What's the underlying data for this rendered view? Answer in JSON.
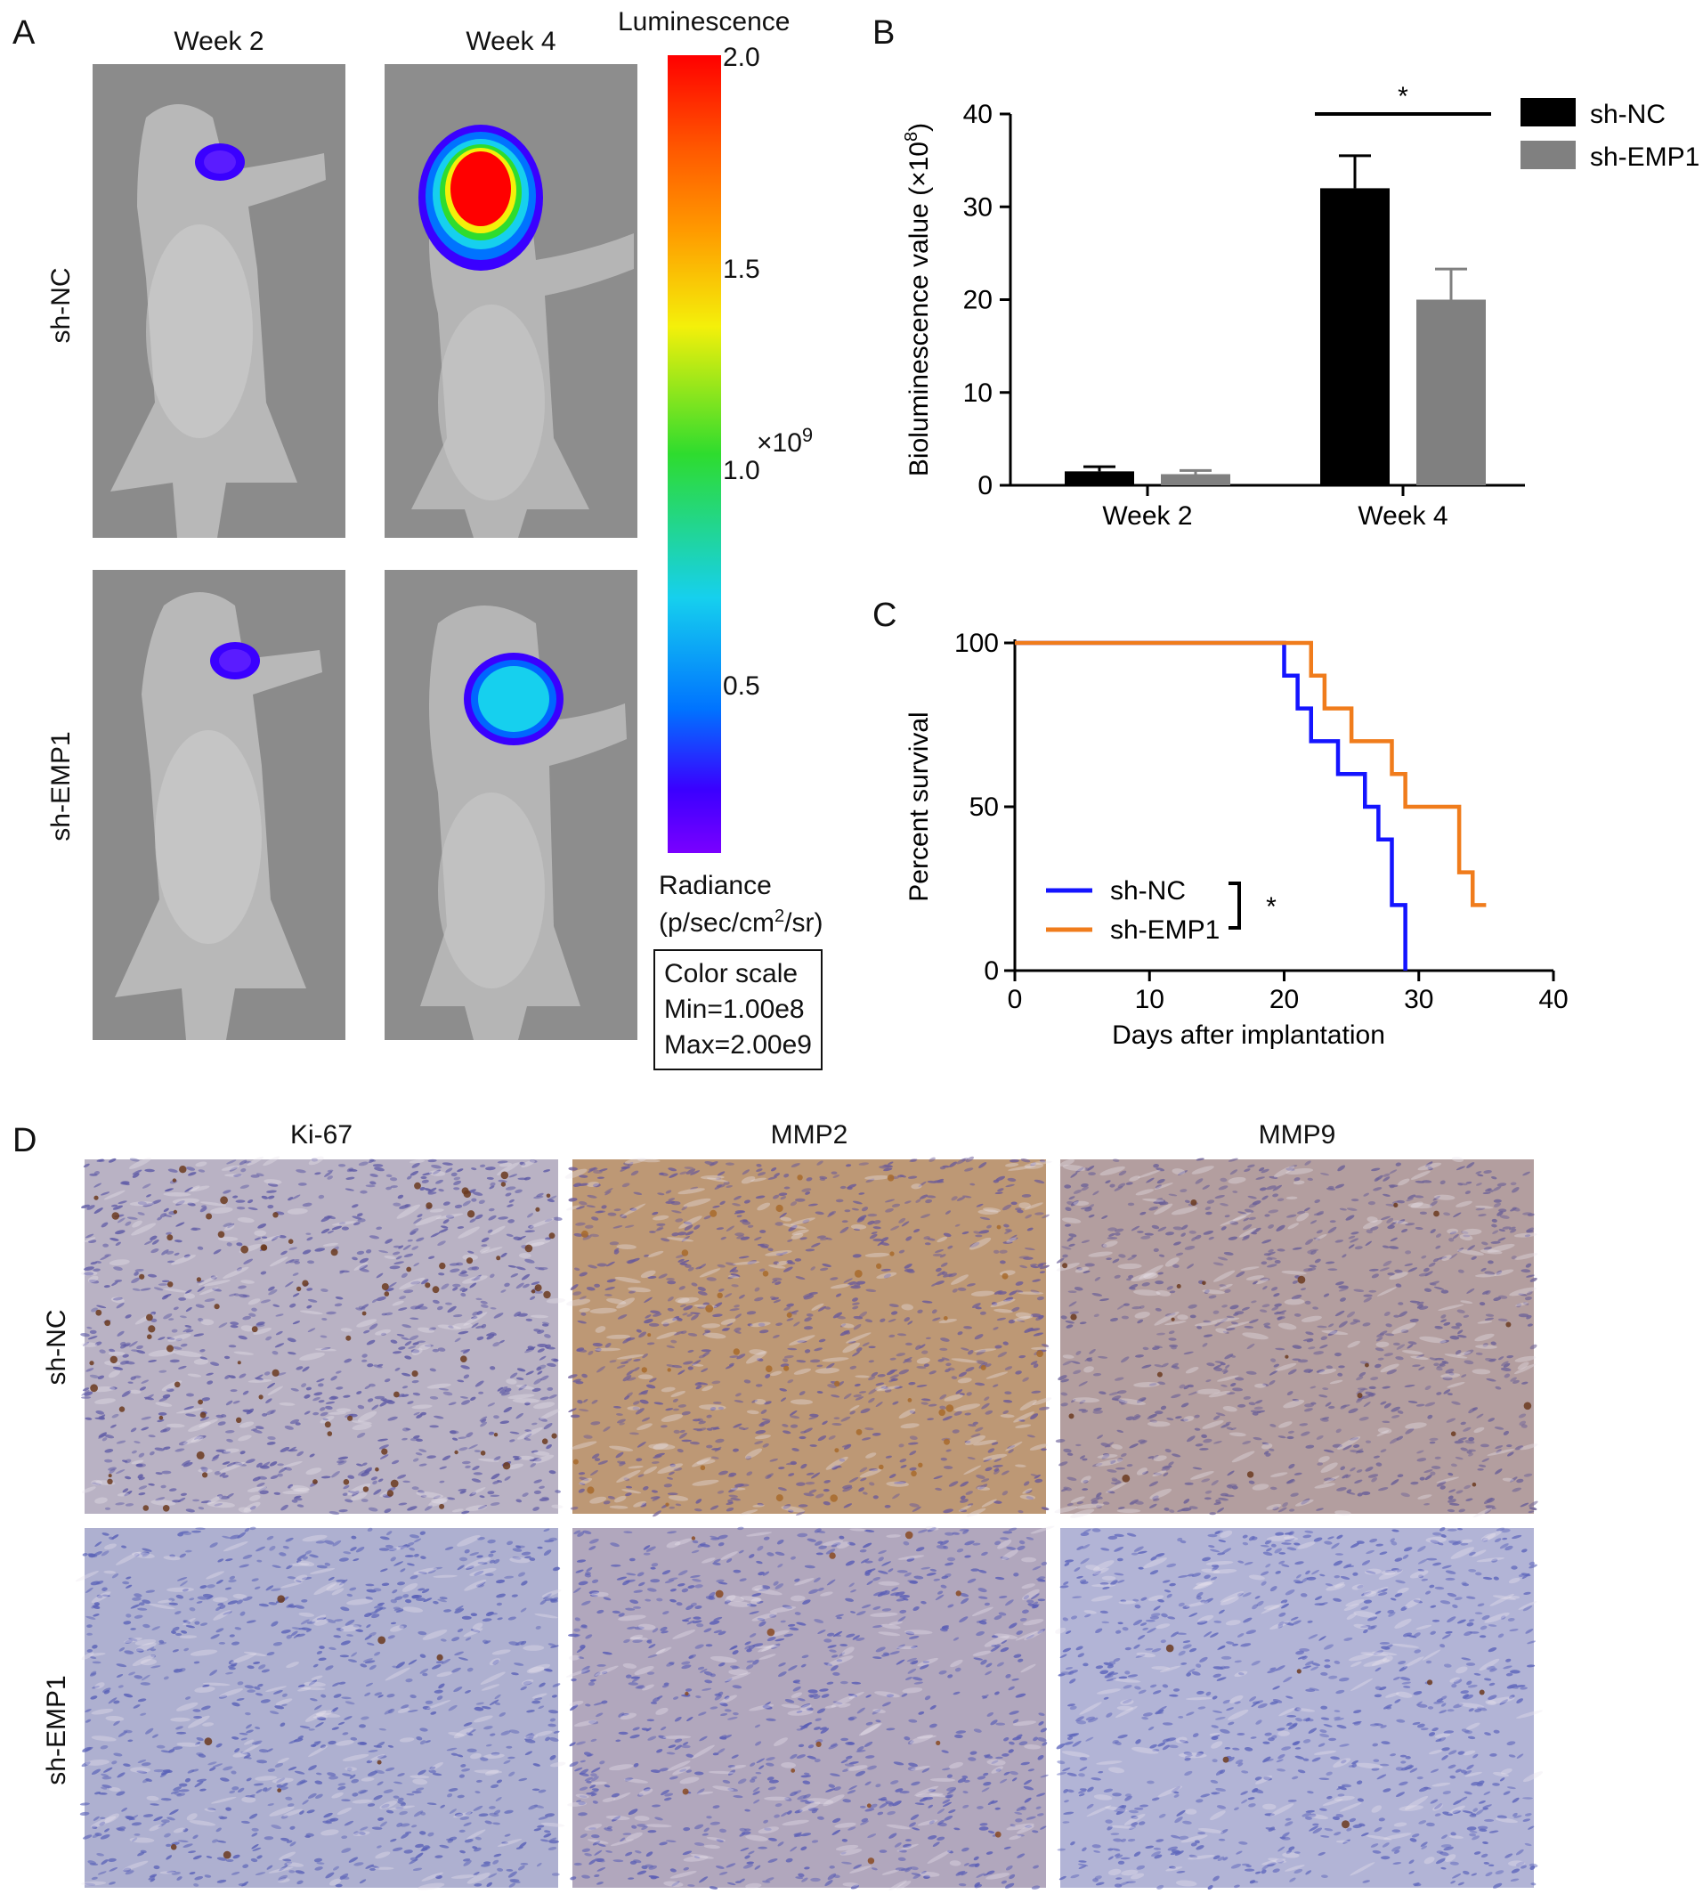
{
  "panel_a": {
    "letter": "A",
    "columns": [
      "Week 2",
      "Week 4"
    ],
    "rows": [
      "sh-NC",
      "sh-EMP1"
    ],
    "colorbar": {
      "title": "Luminescence",
      "ticks": [
        "2.0",
        "1.5",
        "1.0",
        "0.5"
      ],
      "tick_values": [
        2.0,
        1.5,
        1.0,
        0.5
      ],
      "range": [
        0.1,
        2.0
      ],
      "multiplier_base": "×10",
      "multiplier_exp": "9",
      "radiance_label": "Radiance",
      "radiance_unit_pre": "(p/sec/cm",
      "radiance_unit_sup": "2",
      "radiance_unit_post": "/sr)",
      "scale_title": "Color scale",
      "scale_min": "Min=1.00e8",
      "scale_max": "Max=2.00e9"
    },
    "signals": [
      {
        "row": "sh-NC",
        "column": "Week 2",
        "peak_color": "#3a00ff"
      },
      {
        "row": "sh-NC",
        "column": "Week 4",
        "peak_color": "#ff0000"
      },
      {
        "row": "sh-EMP1",
        "column": "Week 2",
        "peak_color": "#3a00ff"
      },
      {
        "row": "sh-EMP1",
        "column": "Week 4",
        "peak_color": "#16d0ee"
      }
    ]
  },
  "panel_d": {
    "letter": "D",
    "columns": [
      "Ki-67",
      "MMP2",
      "MMP9"
    ],
    "rows": [
      "sh-NC",
      "sh-EMP1"
    ]
  },
  "chart_data": [
    {
      "panel": "B",
      "type": "bar",
      "categories": [
        "Week 2",
        "Week 4"
      ],
      "series": [
        {
          "name": "sh-NC",
          "color": "#000000",
          "values": [
            1.5,
            32
          ],
          "errors": [
            0.5,
            3.5
          ]
        },
        {
          "name": "sh-EMP1",
          "color": "#808080",
          "values": [
            1.2,
            20
          ],
          "errors": [
            0.4,
            3.3
          ]
        }
      ],
      "ylabel_pre": "Bioluminescence value (×10",
      "ylabel_sup": "8",
      "ylabel_post": ")",
      "ylim": [
        0,
        40
      ],
      "yticks": [
        0,
        10,
        20,
        30,
        40
      ],
      "significance": "*",
      "legend_position": "top-right"
    },
    {
      "panel": "C",
      "type": "line",
      "xlabel": "Days after implantation",
      "ylabel": "Percent survival",
      "xlim": [
        0,
        40
      ],
      "ylim": [
        0,
        100
      ],
      "xticks": [
        0,
        10,
        20,
        30,
        40
      ],
      "yticks": [
        0,
        50,
        100
      ],
      "significance": "*",
      "legend_position": "bottom-left",
      "series": [
        {
          "name": "sh-NC",
          "color": "#1414ff",
          "x": [
            0,
            20,
            21,
            22,
            24,
            26,
            27,
            28,
            29
          ],
          "y": [
            100,
            90,
            80,
            70,
            60,
            50,
            40,
            20,
            0
          ]
        },
        {
          "name": "sh-EMP1",
          "color": "#f07c1c",
          "x": [
            0,
            22,
            23,
            25,
            28,
            29,
            33,
            34,
            35
          ],
          "y": [
            100,
            90,
            80,
            70,
            60,
            50,
            30,
            20,
            20
          ]
        }
      ]
    }
  ]
}
